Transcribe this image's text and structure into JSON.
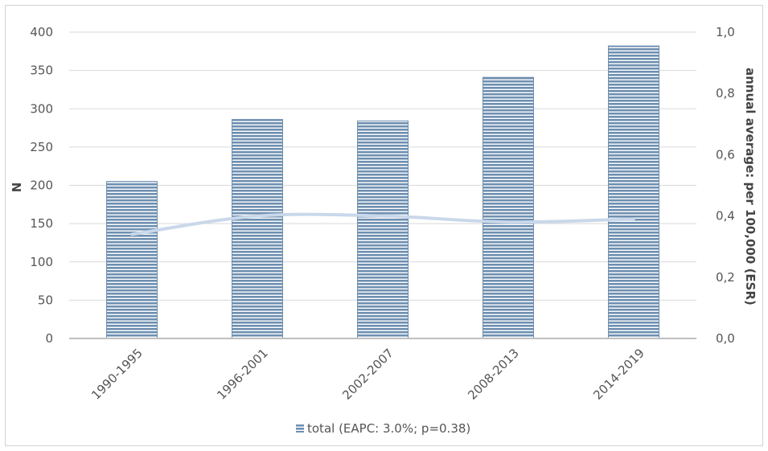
{
  "chart_data": {
    "type": "bar",
    "categories": [
      "1990-1995",
      "1996-2001",
      "2002-2007",
      "2008-2013",
      "2014-2019"
    ],
    "series": [
      {
        "name": "total (EAPC: 3.0%; p=0.38)",
        "axis": "left",
        "type": "bar",
        "values": [
          205,
          286,
          284,
          341,
          382
        ],
        "color": "#6e8fb0"
      },
      {
        "axis": "right",
        "type": "line",
        "values": [
          0.34,
          0.4,
          0.4,
          0.38,
          0.39
        ],
        "color": "#c9d8ea"
      }
    ],
    "ylabel": "N",
    "y2label": "annual average: per 100,000 (ESR)",
    "ylim": [
      0,
      400
    ],
    "y2lim": [
      0,
      1.0
    ],
    "yticks": [
      "0",
      "50",
      "100",
      "150",
      "200",
      "250",
      "300",
      "350",
      "400"
    ],
    "y2ticks": [
      "0,0",
      "0,2",
      "0,4",
      "0,6",
      "0,8",
      "1,0"
    ],
    "grid": true,
    "legend": "bottom-center"
  }
}
